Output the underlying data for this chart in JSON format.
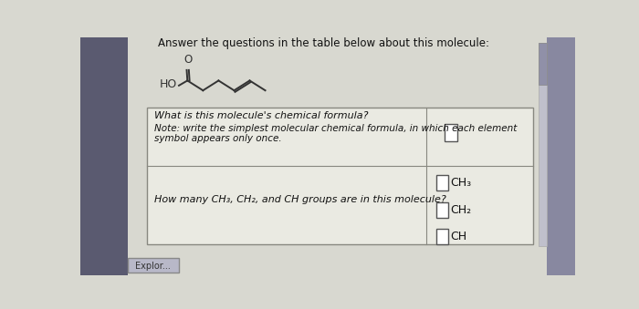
{
  "title": "Answer the questions in the table below about this molecule:",
  "title_fontsize": 8.5,
  "bg_color_left": "#7a7a8a",
  "bg_color_main": "#d8d8d0",
  "panel_bg": "#e2e2da",
  "table_bg": "#eaeae2",
  "molecule_label": "HO",
  "oxygen_label": "O",
  "q1_text": "What is this molecule's chemical formula?",
  "q1_note_line1": "Note: write the simplest molecular chemical formula, in which each element",
  "q1_note_line2": "symbol appears only once.",
  "q2_text": "How many CH₃, CH₂, and CH groups are in this molecule?",
  "row2_labels": [
    "CH₃",
    "CH₂",
    "CH"
  ],
  "font_color": "#111111",
  "table_border": "#888880",
  "input_box_color": "#ffffff",
  "text_fontsize": 8,
  "note_fontsize": 7.5,
  "label_fontsize": 9
}
